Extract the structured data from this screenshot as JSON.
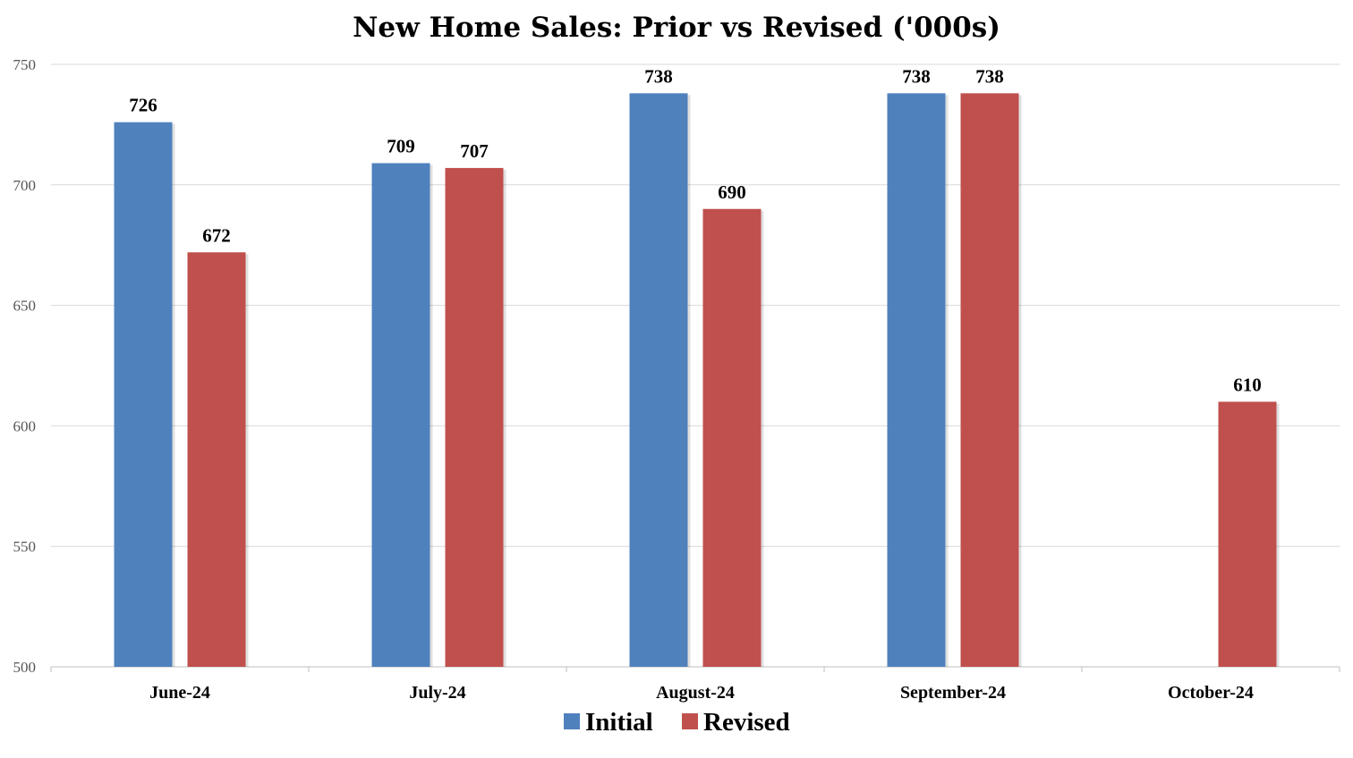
{
  "chart_data": {
    "type": "bar",
    "title": "New Home Sales: Prior vs Revised ('000s)",
    "categories": [
      "June-24",
      "July-24",
      "August-24",
      "September-24",
      "October-24"
    ],
    "series": [
      {
        "name": "Initial",
        "color": "#4f81bd",
        "values": [
          726,
          709,
          738,
          738,
          null
        ]
      },
      {
        "name": "Revised",
        "color": "#c0504d",
        "values": [
          672,
          707,
          690,
          738,
          610
        ]
      }
    ],
    "ylim": [
      500,
      750
    ],
    "yticks": [
      500,
      550,
      600,
      650,
      700,
      750
    ],
    "grid": true,
    "legend_position": "bottom-center",
    "xlabel": "",
    "ylabel": ""
  }
}
